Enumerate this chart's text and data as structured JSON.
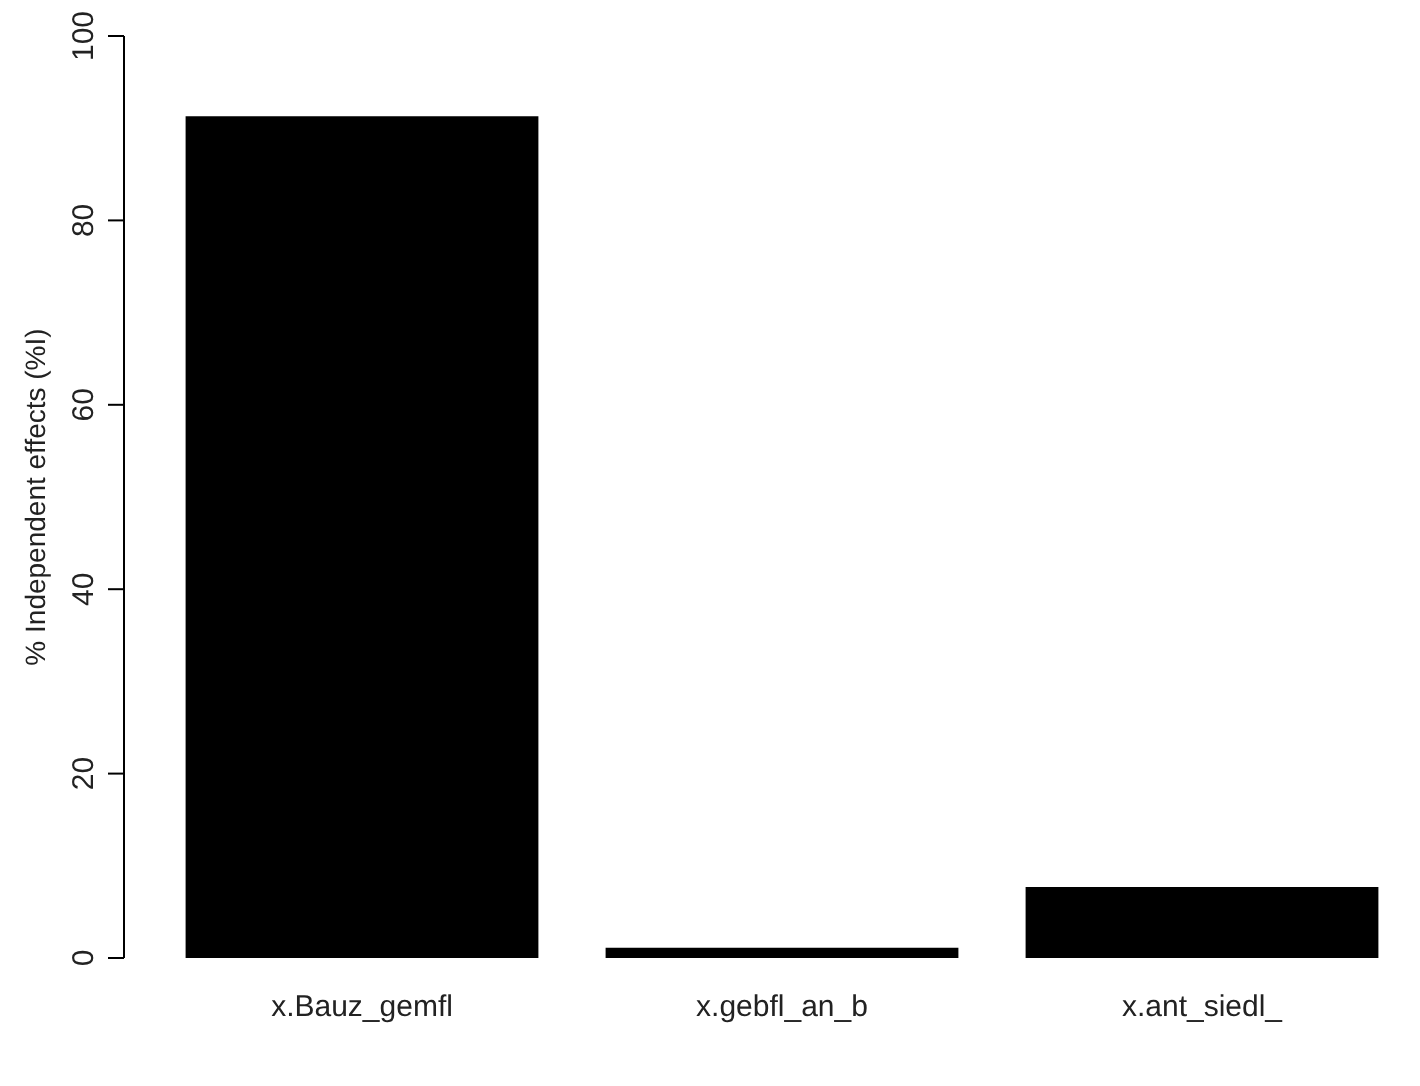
{
  "chart_data": {
    "type": "bar",
    "ylabel": "% Independent effects (%I)",
    "categories": [
      "x.Bauz_gemfl",
      "x.gebfl_an_b",
      "x.ant_siedl_"
    ],
    "values": [
      91.3,
      1.1,
      7.7
    ],
    "color": "#000000",
    "ylim": [
      0,
      100
    ],
    "yticks": [
      0,
      20,
      40,
      60,
      80,
      100
    ],
    "grid": false,
    "legend": false
  }
}
